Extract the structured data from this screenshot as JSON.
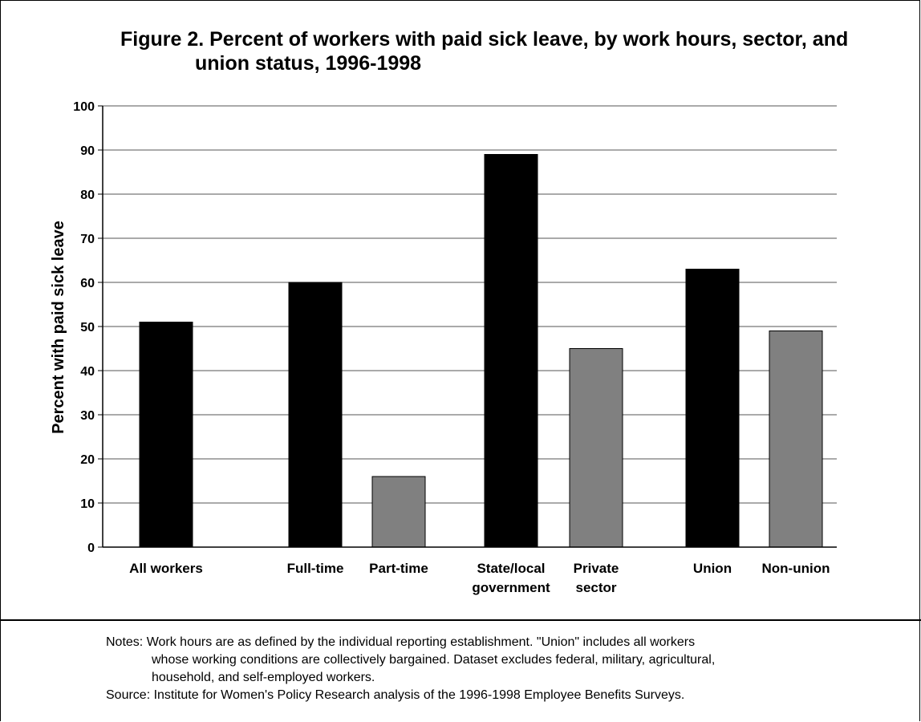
{
  "chart_data": {
    "type": "bar",
    "title_line1": "Figure 2. Percent of workers with paid sick leave, by work hours, sector, and",
    "title_line2": "union status, 1996-1998",
    "ylabel": "Percent with paid sick leave",
    "xlabel": "",
    "ylim": [
      0,
      100
    ],
    "yticks": [
      "0",
      "10",
      "20",
      "30",
      "40",
      "50",
      "60",
      "70",
      "80",
      "90",
      "100"
    ],
    "grid": true,
    "categories": [
      [
        "All workers"
      ],
      [
        "Full-time"
      ],
      [
        "Part-time"
      ],
      [
        "State/local",
        "government"
      ],
      [
        "Private",
        "sector"
      ],
      [
        "Union"
      ],
      [
        "Non-union"
      ]
    ],
    "values": [
      51,
      60,
      16,
      89,
      45,
      63,
      49
    ],
    "bar_colors": [
      "#000000",
      "#000000",
      "#808080",
      "#000000",
      "#808080",
      "#000000",
      "#808080"
    ]
  },
  "notes": {
    "line1": "Notes: Work hours are as defined by the individual reporting establishment. \"Union\" includes all workers",
    "line2": "whose working conditions are collectively bargained.  Dataset excludes federal, military, agricultural,",
    "line3": "household, and self-employed workers.",
    "source": "Source: Institute for Women's Policy Research analysis of the 1996-1998 Employee Benefits Surveys."
  }
}
